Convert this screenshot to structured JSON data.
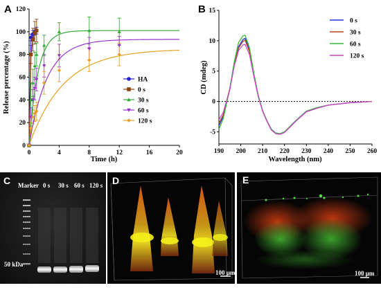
{
  "panels": {
    "a": {
      "label": "A"
    },
    "b": {
      "label": "B"
    },
    "c": {
      "label": "C",
      "marker_label": "Marker",
      "lanes": [
        "0 s",
        "30 s",
        "60 s",
        "120 s"
      ],
      "kda_label": "50 kDa"
    },
    "d": {
      "label": "D",
      "scale_label": "100 μm"
    },
    "e": {
      "label": "E",
      "scale_label": "100 μm"
    }
  },
  "chart_data": [
    {
      "type": "line",
      "panel": "A",
      "xlabel": "Time (h)",
      "ylabel": "Release percentage (%)",
      "xlim": [
        0,
        20
      ],
      "ylim": [
        0,
        120
      ],
      "xticks": [
        "0",
        "4",
        "8",
        "12",
        "16",
        "20"
      ],
      "yticks": [
        "0",
        "20",
        "40",
        "60",
        "80",
        "100",
        "120"
      ],
      "legend_position": "center-right",
      "series": [
        {
          "name": "HA",
          "color": "#2222cc",
          "marker": "circle",
          "x": [
            0,
            0.25,
            0.5,
            0.75,
            1
          ],
          "y": [
            0,
            95,
            98,
            100,
            101
          ],
          "err": [
            0,
            3,
            3,
            3,
            3
          ],
          "fit": false
        },
        {
          "name": "0 s",
          "color": "#8b4513",
          "marker": "square",
          "x": [
            0,
            0.25,
            0.5,
            0.75,
            1
          ],
          "y": [
            0,
            80,
            93,
            99,
            101
          ],
          "err": [
            0,
            8,
            10,
            10,
            10
          ],
          "fit": false
        },
        {
          "name": "30 s",
          "color": "#33aa33",
          "marker": "triangle",
          "x": [
            0,
            0.25,
            0.5,
            0.75,
            1,
            2,
            4,
            8,
            12
          ],
          "y": [
            0,
            40,
            55,
            70,
            80,
            88,
            100,
            101,
            100
          ],
          "err": [
            0,
            15,
            12,
            12,
            10,
            9,
            8,
            12,
            12
          ],
          "fit": true
        },
        {
          "name": "60 s",
          "color": "#9933cc",
          "marker": "triangle-down",
          "x": [
            0,
            0.25,
            0.5,
            0.75,
            1,
            2,
            4,
            8,
            12
          ],
          "y": [
            0,
            25,
            40,
            50,
            58,
            70,
            79,
            85,
            88
          ],
          "err": [
            0,
            8,
            9,
            10,
            10,
            10,
            10,
            10,
            8
          ],
          "fit": true
        },
        {
          "name": "120 s",
          "color": "#e6a020",
          "marker": "diamond",
          "x": [
            0,
            0.25,
            0.5,
            0.75,
            1,
            2,
            4,
            8,
            12
          ],
          "y": [
            0,
            15,
            25,
            28,
            30,
            55,
            66,
            75,
            80
          ],
          "err": [
            0,
            5,
            6,
            7,
            8,
            10,
            10,
            10,
            10
          ],
          "fit": true
        }
      ]
    },
    {
      "type": "line",
      "panel": "B",
      "xlabel": "Wavelength (nm)",
      "ylabel": "CD (mdeg)",
      "xlim": [
        190,
        260
      ],
      "ylim": [
        -7,
        15
      ],
      "xticks": [
        "190",
        "200",
        "210",
        "220",
        "230",
        "240",
        "250",
        "260"
      ],
      "yticks": [
        "-5",
        "0",
        "5",
        "10",
        "15"
      ],
      "zero_line": "dotted",
      "legend_position": "top-right",
      "series": [
        {
          "name": "0 s",
          "color": "#2233dd",
          "x": [
            190,
            192,
            195,
            197,
            199,
            201,
            202,
            204,
            206,
            208,
            210,
            212,
            214,
            216,
            218,
            220,
            222,
            225,
            230,
            235,
            240,
            245,
            250,
            255,
            260
          ],
          "y": [
            -4,
            -2.5,
            2,
            6,
            9,
            10.2,
            10.4,
            8.5,
            4.5,
            1,
            -1.5,
            -3.2,
            -4.6,
            -5.2,
            -5.3,
            -5,
            -4.3,
            -3.2,
            -1.6,
            -1,
            -0.6,
            -0.4,
            -0.2,
            -0.1,
            0
          ]
        },
        {
          "name": "30 s",
          "color": "#b5451b",
          "x": [
            190,
            192,
            195,
            197,
            199,
            201,
            202,
            204,
            206,
            208,
            210,
            212,
            214,
            216,
            218,
            220,
            222,
            225,
            230,
            235,
            240,
            245,
            250,
            255,
            260
          ],
          "y": [
            -3.6,
            -2.2,
            2.2,
            6.1,
            8.8,
            9.9,
            10.1,
            8.2,
            4.3,
            0.9,
            -1.6,
            -3.3,
            -4.7,
            -5.3,
            -5.4,
            -5.1,
            -4.4,
            -3.3,
            -1.7,
            -1.1,
            -0.6,
            -0.4,
            -0.2,
            -0.1,
            0
          ]
        },
        {
          "name": "60 s",
          "color": "#33bb33",
          "x": [
            190,
            192,
            195,
            197,
            199,
            201,
            202,
            204,
            206,
            208,
            210,
            212,
            214,
            216,
            218,
            220,
            222,
            225,
            230,
            235,
            240,
            245,
            250,
            255,
            260
          ],
          "y": [
            -4.6,
            -2.8,
            2.1,
            6.5,
            9.7,
            10.8,
            10.9,
            8.8,
            4.6,
            1,
            -1.5,
            -3.2,
            -4.6,
            -5.2,
            -5.3,
            -5,
            -4.3,
            -3.2,
            -1.6,
            -1,
            -0.6,
            -0.4,
            -0.2,
            -0.1,
            0
          ]
        },
        {
          "name": "120 s",
          "color": "#cc44cc",
          "x": [
            190,
            192,
            195,
            197,
            199,
            201,
            202,
            204,
            206,
            208,
            210,
            212,
            214,
            216,
            218,
            220,
            222,
            225,
            230,
            235,
            240,
            245,
            250,
            255,
            260
          ],
          "y": [
            -3,
            -1.8,
            2,
            5.8,
            8.4,
            9.3,
            9.4,
            7.7,
            4.1,
            0.8,
            -1.6,
            -3.3,
            -4.7,
            -5.3,
            -5.4,
            -5.1,
            -4.4,
            -3.3,
            -1.7,
            -1.1,
            -0.6,
            -0.4,
            -0.2,
            -0.1,
            0
          ]
        }
      ]
    }
  ]
}
